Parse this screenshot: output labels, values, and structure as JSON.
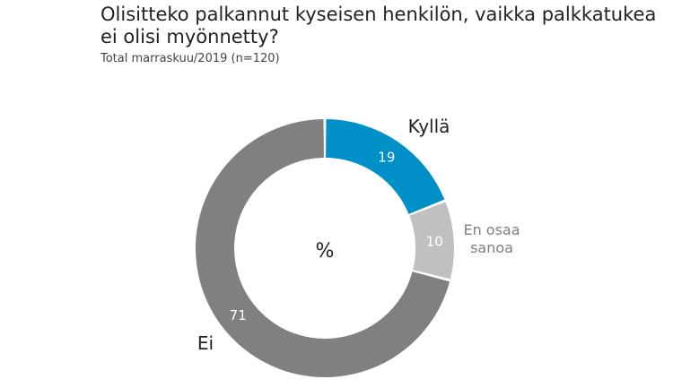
{
  "chart_data": {
    "type": "pie",
    "variant": "donut",
    "title": "Olisitteko palkannut kyseisen henkilön, vaikka palkkatukea ei olisi myönnetty?",
    "subtitle": "Total marraskuu/2019 (n=120)",
    "center_label": "%",
    "unit": "%",
    "slices": [
      {
        "label": "Kyllä",
        "value": 19,
        "color": "#0090c8",
        "label_color": "#222222",
        "value_color": "#ffffff"
      },
      {
        "label": "En osaa\nsanoa",
        "value": 10,
        "color": "#c0c0c0",
        "label_color": "#7f7f7f",
        "value_color": "#ffffff"
      },
      {
        "label": "Ei",
        "value": 71,
        "color": "#808080",
        "label_color": "#222222",
        "value_color": "#ffffff"
      }
    ]
  }
}
